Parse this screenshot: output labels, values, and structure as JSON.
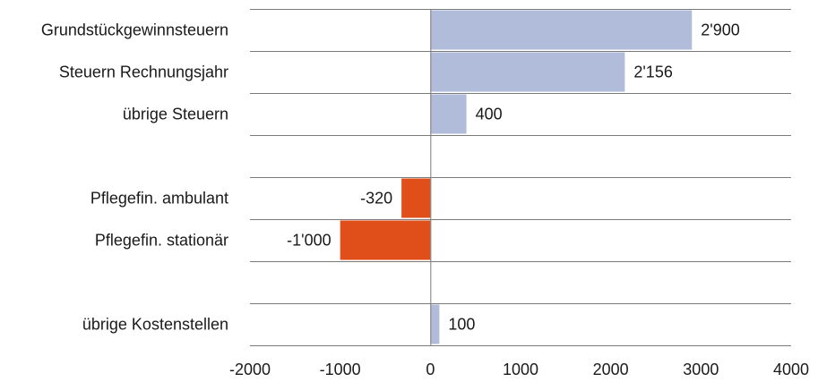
{
  "chart_data": {
    "type": "bar",
    "orientation": "horizontal",
    "title": "",
    "xlabel": "",
    "ylabel": "",
    "xlim": [
      -2000,
      4000
    ],
    "xticks": [
      "-2000",
      "-1000",
      "0",
      "1000",
      "2000",
      "3000",
      "4000"
    ],
    "xtick_values": [
      -2000,
      -1000,
      0,
      1000,
      2000,
      3000,
      4000
    ],
    "grid": true,
    "rows": [
      {
        "category": "Grundstückgewinnsteuern",
        "value": 2900,
        "label": "2'900",
        "color": "#b0bcd9"
      },
      {
        "category": "Steuern Rechnungsjahr",
        "value": 2156,
        "label": "2'156",
        "color": "#b0bcd9"
      },
      {
        "category": "übrige Steuern",
        "value": 400,
        "label": "400",
        "color": "#b0bcd9"
      },
      {
        "category": "",
        "value": null,
        "label": "",
        "color": ""
      },
      {
        "category": "Pflegefin. ambulant",
        "value": -320,
        "label": "-320",
        "color": "#e04e1a"
      },
      {
        "category": "Pflegefin. stationär",
        "value": -1000,
        "label": "-1'000",
        "color": "#e04e1a"
      },
      {
        "category": "",
        "value": null,
        "label": "",
        "color": ""
      },
      {
        "category": "übrige Kostenstellen",
        "value": 100,
        "label": "100",
        "color": "#b0bcd9"
      }
    ]
  }
}
